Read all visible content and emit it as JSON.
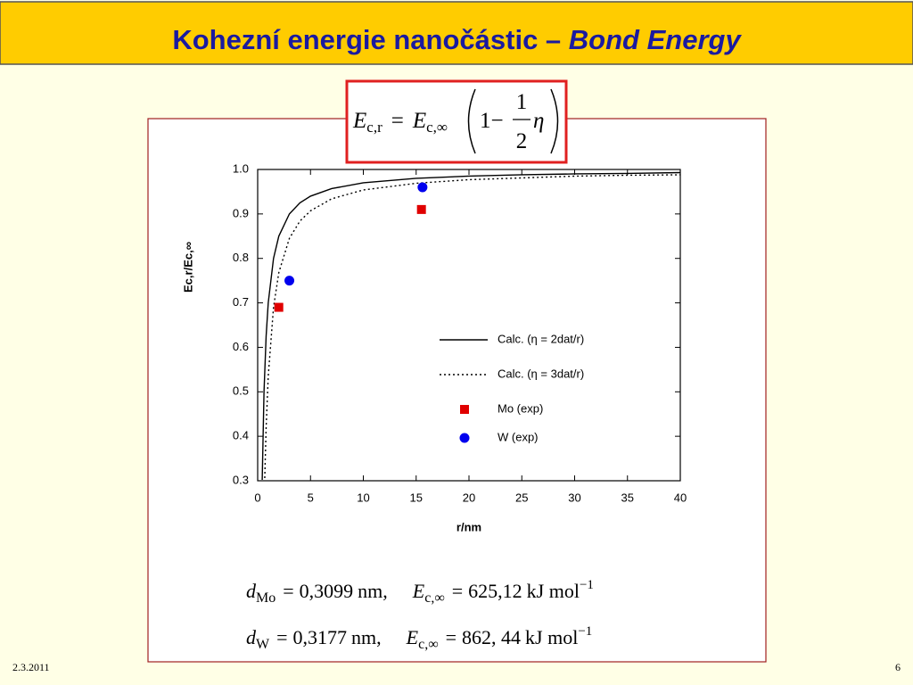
{
  "title": {
    "main": "Kohezní energie nanočástic – ",
    "italic": "Bond Energy"
  },
  "formula": {
    "lhs": "E",
    "lhs_sub": "c,r",
    "eq": "=",
    "rhs": "E",
    "rhs_sub": "c,∞",
    "one": "1−",
    "num": "1",
    "den": "2",
    "eta": "η"
  },
  "constants": [
    {
      "symbol": "d",
      "sub": "Mo",
      "eq": "=",
      "value": "0,3099",
      "unit": "nm,",
      "esym": "E",
      "esub": "c,∞",
      "eeq": "=",
      "evalue": "625,12",
      "eunit": "kJ mol",
      "eexp": "−1"
    },
    {
      "symbol": "d",
      "sub": "W",
      "eq": "=",
      "value": "0,3177",
      "unit": "nm,",
      "esym": "E",
      "esub": "c,∞",
      "eeq": "=",
      "evalue": "862, 44",
      "eunit": "kJ mol",
      "eexp": "−1"
    }
  ],
  "footer": {
    "date": "2.3.2011",
    "page": "6"
  },
  "chart_data": {
    "type": "line",
    "xlabel": "r/nm",
    "ylabel": "Ec,r/Ec,∞",
    "xlim": [
      0,
      40
    ],
    "xticks": [
      0,
      5,
      10,
      15,
      20,
      25,
      30,
      35,
      40
    ],
    "ylim": [
      0.3,
      1.0
    ],
    "yticks": [
      0.3,
      0.4,
      0.5,
      0.6,
      0.7,
      0.8,
      0.9,
      {
        "value": 1,
        "label": "1.0"
      }
    ],
    "series": [
      {
        "name": "Calc. (η = 2dat/r)",
        "color": "#000000",
        "style": "solid",
        "x": [
          0.43,
          0.6,
          0.8,
          1,
          1.5,
          2,
          3,
          4,
          5,
          7,
          10,
          15,
          20,
          25,
          30,
          35,
          40
        ],
        "values": [
          0.302,
          0.5,
          0.625,
          0.7,
          0.8,
          0.85,
          0.9,
          0.925,
          0.94,
          0.957,
          0.97,
          0.98,
          0.985,
          0.988,
          0.99,
          0.991,
          0.993
        ]
      },
      {
        "name": "Calc. (η = 3dat/r)",
        "color": "#000000",
        "style": "dotted",
        "x": [
          0.67,
          0.8,
          1,
          1.5,
          2,
          3,
          4,
          5,
          7,
          10,
          15,
          20,
          25,
          30,
          35,
          40
        ],
        "values": [
          0.306,
          0.419,
          0.535,
          0.69,
          0.768,
          0.845,
          0.884,
          0.907,
          0.934,
          0.954,
          0.969,
          0.977,
          0.981,
          0.985,
          0.987,
          0.988
        ]
      },
      {
        "name": "Mo (exp)",
        "color": "#e00000",
        "marker": "square",
        "x": [
          2.0,
          15.5
        ],
        "values": [
          0.69,
          0.91
        ]
      },
      {
        "name": "W (exp)",
        "color": "#0000ee",
        "marker": "circle",
        "x": [
          3.0,
          15.6
        ],
        "values": [
          0.75,
          0.96
        ]
      }
    ]
  }
}
